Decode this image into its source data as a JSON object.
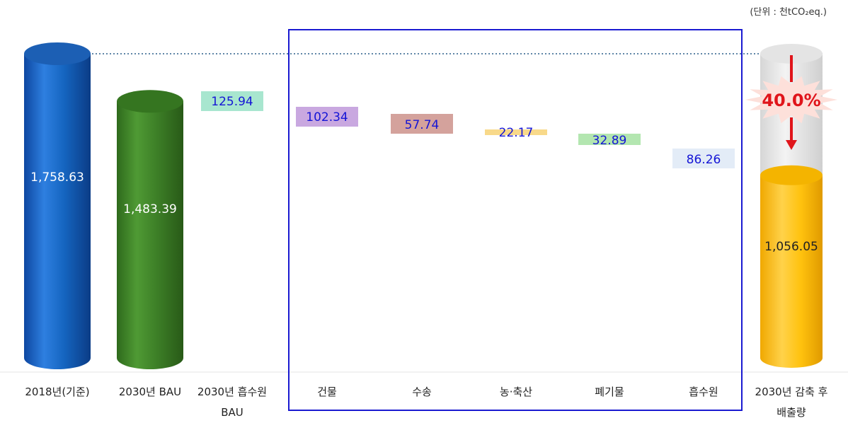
{
  "unit_label": "(단위 : 천tCO₂eq.)",
  "chart_data": {
    "type": "bar",
    "title": "",
    "xlabel": "",
    "ylabel": "",
    "ylim": [
      0,
      1800
    ],
    "categories": [
      [
        "2018년(기준)"
      ],
      [
        "2030년 BAU"
      ],
      [
        "2030년 흡수원",
        "BAU"
      ],
      [
        "건물"
      ],
      [
        "수송"
      ],
      [
        "농·축산"
      ],
      [
        "폐기물"
      ],
      [
        "흡수원"
      ],
      [
        "2030년 감축 후",
        "배출량"
      ]
    ],
    "values": [
      1758.63,
      1483.39,
      125.94,
      102.34,
      57.74,
      22.17,
      32.89,
      86.26,
      1056.05
    ],
    "value_labels": [
      "1,758.63",
      "1,483.39",
      "125.94",
      "102.34",
      "57.74",
      "22.17",
      "32.89",
      "86.26",
      "1,056.05"
    ],
    "reduction_label": "40.0%",
    "bar_colors": [
      "#1565c0",
      "#3d7f27",
      "#a8e6cf",
      "#c9a8e0",
      "#d4a29c",
      "#f8d98a",
      "#b3e6b0",
      "#e3ecf7",
      "#ffc20e"
    ]
  }
}
